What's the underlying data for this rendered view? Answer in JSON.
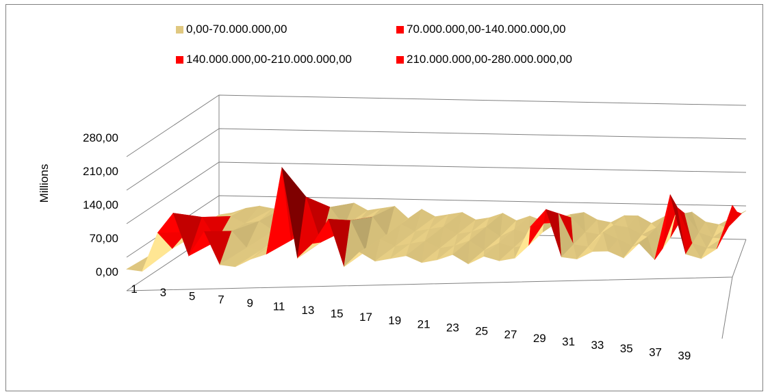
{
  "chart_data": {
    "type": "surface",
    "ylabel": "Millions",
    "y_ticks": [
      "0,00",
      "70,00",
      "140,00",
      "210,00",
      "280,00"
    ],
    "y_values": [
      0,
      70,
      140,
      210,
      280
    ],
    "ylim": [
      0,
      280
    ],
    "x_ticks": [
      "1",
      "3",
      "5",
      "7",
      "9",
      "11",
      "13",
      "15",
      "17",
      "19",
      "21",
      "23",
      "25",
      "27",
      "29",
      "31",
      "33",
      "35",
      "37",
      "39"
    ],
    "legend": [
      {
        "label": "0,00-70.000.000,00",
        "color": "#E0C880"
      },
      {
        "label": "70.000.000,00-140.000.000,00",
        "color": "#FF0000"
      },
      {
        "label": "140.000.000,00-210.000.000,00",
        "color": "#FF0000"
      },
      {
        "label": "210.000.000,00-280.000.000,00",
        "color": "#FF0000"
      }
    ],
    "series_depth": 4,
    "values": [
      [
        45,
        40,
        120,
        160,
        70,
        120,
        50,
        45,
        60,
        70,
        250,
        60,
        90,
        140,
        40,
        70,
        50,
        55,
        60,
        45,
        50,
        60,
        40,
        55,
        45,
        50,
        115,
        150,
        50,
        45,
        60,
        60,
        45,
        75,
        40,
        175,
        50,
        40,
        60,
        150
      ],
      [
        40,
        45,
        80,
        110,
        60,
        80,
        45,
        40,
        55,
        60,
        150,
        55,
        70,
        100,
        35,
        60,
        45,
        50,
        55,
        40,
        45,
        55,
        35,
        50,
        40,
        45,
        90,
        110,
        45,
        40,
        70,
        55,
        40,
        60,
        35,
        120,
        45,
        35,
        55,
        110
      ],
      [
        35,
        40,
        60,
        70,
        55,
        60,
        40,
        35,
        50,
        55,
        90,
        50,
        60,
        70,
        30,
        55,
        40,
        45,
        50,
        35,
        40,
        50,
        30,
        45,
        35,
        40,
        60,
        70,
        40,
        35,
        55,
        50,
        35,
        50,
        30,
        80,
        40,
        30,
        50,
        80
      ],
      [
        30,
        35,
        45,
        50,
        45,
        50,
        35,
        30,
        45,
        50,
        60,
        45,
        50,
        55,
        30,
        50,
        35,
        40,
        45,
        30,
        35,
        45,
        30,
        40,
        30,
        35,
        45,
        50,
        35,
        30,
        45,
        45,
        30,
        45,
        30,
        55,
        35,
        30,
        45,
        60
      ]
    ]
  }
}
